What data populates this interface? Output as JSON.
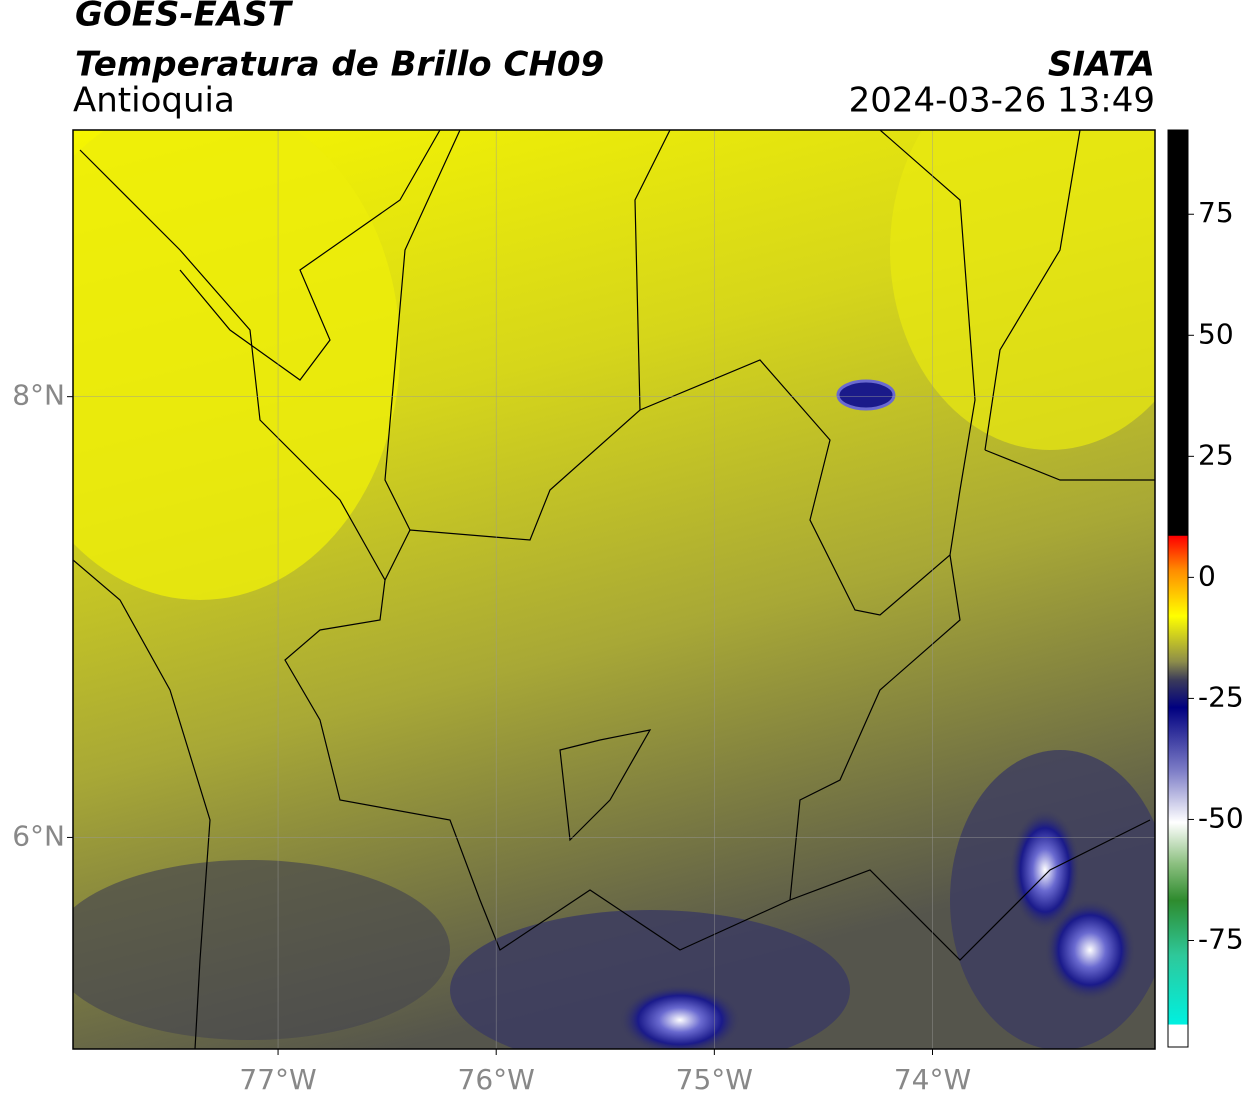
{
  "header": {
    "title": "GOES-EAST",
    "subtitle": "Temperatura de Brillo CH09",
    "region": "Antioquia",
    "source": "SIATA",
    "timestamp": "2024-03-26 13:49"
  },
  "map": {
    "xlim": [
      -77.94,
      -72.98
    ],
    "ylim": [
      5.04,
      9.21
    ],
    "xticks": [
      {
        "value": -77,
        "label": "77°W"
      },
      {
        "value": -76,
        "label": "76°W"
      },
      {
        "value": -75,
        "label": "75°W"
      },
      {
        "value": -74,
        "label": "74°W"
      }
    ],
    "yticks": [
      {
        "value": 8,
        "label": "8°N"
      },
      {
        "value": 6,
        "label": "6°N"
      }
    ]
  },
  "colorbar": {
    "lim": [
      -97,
      92.4
    ],
    "ticks": [
      75,
      50,
      25,
      0,
      -25,
      -50,
      -75
    ]
  }
}
